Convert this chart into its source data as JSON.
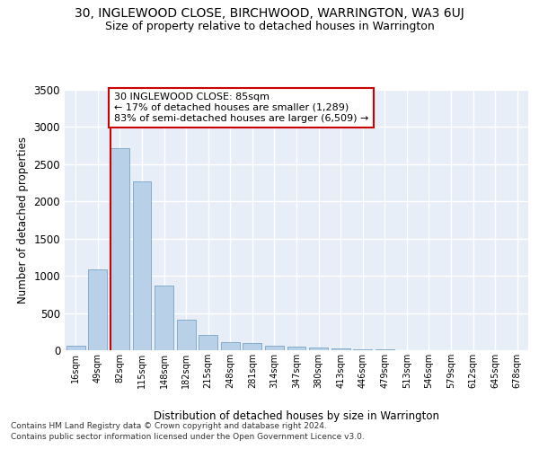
{
  "title": "30, INGLEWOOD CLOSE, BIRCHWOOD, WARRINGTON, WA3 6UJ",
  "subtitle": "Size of property relative to detached houses in Warrington",
  "xlabel": "Distribution of detached houses by size in Warrington",
  "ylabel": "Number of detached properties",
  "categories": [
    "16sqm",
    "49sqm",
    "82sqm",
    "115sqm",
    "148sqm",
    "182sqm",
    "215sqm",
    "248sqm",
    "281sqm",
    "314sqm",
    "347sqm",
    "380sqm",
    "413sqm",
    "446sqm",
    "479sqm",
    "513sqm",
    "546sqm",
    "579sqm",
    "612sqm",
    "645sqm",
    "678sqm"
  ],
  "values": [
    55,
    1090,
    2720,
    2270,
    870,
    410,
    210,
    105,
    100,
    60,
    45,
    40,
    30,
    15,
    10,
    5,
    5,
    0,
    0,
    0,
    0
  ],
  "bar_color": "#b8d0e8",
  "bar_edge_color": "#6699bb",
  "property_line_color": "#cc0000",
  "annotation_text": "30 INGLEWOOD CLOSE: 85sqm\n← 17% of detached houses are smaller (1,289)\n83% of semi-detached houses are larger (6,509) →",
  "annotation_box_color": "#ffffff",
  "annotation_box_edge": "#cc0000",
  "ylim": [
    0,
    3500
  ],
  "yticks": [
    0,
    500,
    1000,
    1500,
    2000,
    2500,
    3000,
    3500
  ],
  "background_color": "#e8eef8",
  "grid_color": "#ffffff",
  "footer1": "Contains HM Land Registry data © Crown copyright and database right 2024.",
  "footer2": "Contains public sector information licensed under the Open Government Licence v3.0."
}
